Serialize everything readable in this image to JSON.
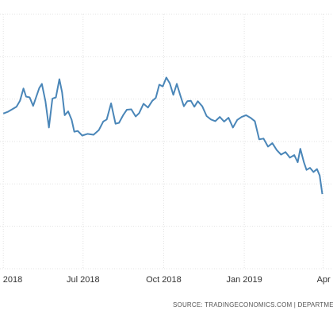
{
  "chart_data": {
    "type": "line",
    "title": "",
    "xlabel": "",
    "ylabel": "",
    "x_ticks": [
      {
        "label": "2018",
        "x": "2018-04-01"
      },
      {
        "label": "Jul 2018",
        "x": "2018-07-01"
      },
      {
        "label": "Oct 2018",
        "x": "2018-10-01"
      },
      {
        "label": "Jan 2019",
        "x": "2019-01-01"
      },
      {
        "label": "Apr",
        "x": "2019-04-01"
      }
    ],
    "xlim": [
      "2018-04-01",
      "2019-04-30"
    ],
    "ylim": [
      0,
      6
    ],
    "grid": true,
    "legend": "none",
    "line_color": "#4a86b8",
    "grid_color": "#e3e3e3",
    "source": "SOURCE: TRADINGECONOMICS.COM  |  DEPARTMENT",
    "series": [
      {
        "values": [
          [
            "2018-04-01",
            3.66
          ],
          [
            "2018-04-06",
            3.7
          ],
          [
            "2018-04-11",
            3.76
          ],
          [
            "2018-04-16",
            3.82
          ],
          [
            "2018-04-20",
            3.96
          ],
          [
            "2018-04-24",
            4.25
          ],
          [
            "2018-04-27",
            4.06
          ],
          [
            "2018-05-01",
            4.04
          ],
          [
            "2018-05-05",
            3.84
          ],
          [
            "2018-05-08",
            4.02
          ],
          [
            "2018-05-12",
            4.26
          ],
          [
            "2018-05-15",
            4.36
          ],
          [
            "2018-05-19",
            3.95
          ],
          [
            "2018-05-23",
            3.33
          ],
          [
            "2018-05-27",
            4.01
          ],
          [
            "2018-05-31",
            4.04
          ],
          [
            "2018-06-04",
            4.47
          ],
          [
            "2018-06-07",
            4.16
          ],
          [
            "2018-06-10",
            3.62
          ],
          [
            "2018-06-14",
            3.71
          ],
          [
            "2018-06-18",
            3.51
          ],
          [
            "2018-06-21",
            3.23
          ],
          [
            "2018-06-25",
            3.25
          ],
          [
            "2018-06-30",
            3.14
          ],
          [
            "2018-07-06",
            3.18
          ],
          [
            "2018-07-13",
            3.16
          ],
          [
            "2018-07-19",
            3.27
          ],
          [
            "2018-07-24",
            3.47
          ],
          [
            "2018-07-28",
            3.52
          ],
          [
            "2018-08-02",
            3.9
          ],
          [
            "2018-08-07",
            3.42
          ],
          [
            "2018-08-11",
            3.44
          ],
          [
            "2018-08-16",
            3.63
          ],
          [
            "2018-08-20",
            3.75
          ],
          [
            "2018-08-25",
            3.76
          ],
          [
            "2018-08-30",
            3.59
          ],
          [
            "2018-09-03",
            3.67
          ],
          [
            "2018-09-08",
            3.89
          ],
          [
            "2018-09-13",
            3.8
          ],
          [
            "2018-09-18",
            3.96
          ],
          [
            "2018-09-22",
            4.03
          ],
          [
            "2018-09-26",
            4.34
          ],
          [
            "2018-09-30",
            4.3
          ],
          [
            "2018-10-04",
            4.51
          ],
          [
            "2018-10-08",
            4.37
          ],
          [
            "2018-10-12",
            4.1
          ],
          [
            "2018-10-16",
            4.36
          ],
          [
            "2018-10-20",
            4.09
          ],
          [
            "2018-10-24",
            3.83
          ],
          [
            "2018-10-28",
            3.95
          ],
          [
            "2018-11-01",
            3.96
          ],
          [
            "2018-11-05",
            3.82
          ],
          [
            "2018-11-09",
            3.95
          ],
          [
            "2018-11-14",
            3.83
          ],
          [
            "2018-11-19",
            3.6
          ],
          [
            "2018-11-24",
            3.52
          ],
          [
            "2018-11-29",
            3.48
          ],
          [
            "2018-12-04",
            3.58
          ],
          [
            "2018-12-09",
            3.47
          ],
          [
            "2018-12-14",
            3.56
          ],
          [
            "2018-12-19",
            3.33
          ],
          [
            "2018-12-24",
            3.51
          ],
          [
            "2018-12-29",
            3.58
          ],
          [
            "2019-01-03",
            3.62
          ],
          [
            "2019-01-08",
            3.56
          ],
          [
            "2019-01-13",
            3.48
          ],
          [
            "2019-01-18",
            3.05
          ],
          [
            "2019-01-23",
            3.07
          ],
          [
            "2019-01-28",
            2.88
          ],
          [
            "2019-02-02",
            2.96
          ],
          [
            "2019-02-07",
            2.8
          ],
          [
            "2019-02-12",
            2.69
          ],
          [
            "2019-02-17",
            2.75
          ],
          [
            "2019-02-22",
            2.62
          ],
          [
            "2019-02-27",
            2.68
          ],
          [
            "2019-03-03",
            2.51
          ],
          [
            "2019-03-06",
            2.83
          ],
          [
            "2019-03-10",
            2.51
          ],
          [
            "2019-03-13",
            2.33
          ],
          [
            "2019-03-17",
            2.38
          ],
          [
            "2019-03-21",
            2.28
          ],
          [
            "2019-03-25",
            2.35
          ],
          [
            "2019-03-28",
            2.2
          ],
          [
            "2019-03-31",
            1.76
          ]
        ]
      }
    ]
  }
}
